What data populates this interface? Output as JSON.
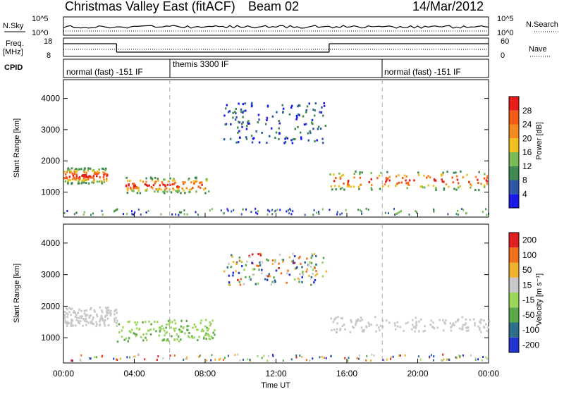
{
  "header": {
    "title": "Christmas Valley East (fitACF)",
    "beam": "Beam 02",
    "date": "14/Mar/2012"
  },
  "noise_panel": {
    "left_label": "N.Sky",
    "left_ticks": [
      "10^5",
      "10^0"
    ],
    "right_label": "N.Search",
    "right_ticks": [
      "10^5",
      "10^0"
    ]
  },
  "freq_panel": {
    "left_label_1": "Freq.",
    "left_label_2": "[MHz]",
    "left_ticks": [
      "18",
      "8"
    ],
    "right_label": "Nave",
    "right_ticks": [
      "60",
      "0"
    ]
  },
  "cpid": {
    "label": "CPID",
    "segments": [
      {
        "text": "normal (fast) -151 IF",
        "start_hour": 0,
        "end_hour": 6
      },
      {
        "text": "themis 3300 IF",
        "start_hour": 6,
        "end_hour": 18
      },
      {
        "text": "normal (fast) -151 IF",
        "start_hour": 18,
        "end_hour": 24
      }
    ]
  },
  "x_axis": {
    "label": "Time UT",
    "ticks": [
      "00:00",
      "04:00",
      "08:00",
      "12:00",
      "16:00",
      "20:00",
      "00:00"
    ]
  },
  "power_colorbar": {
    "label": "Power [dB]",
    "ticks": [
      "4",
      "8",
      "12",
      "16",
      "20",
      "24",
      "28"
    ],
    "colors": [
      "#1a1ae6",
      "#2f57a8",
      "#3f8a4f",
      "#79b956",
      "#f0c020",
      "#f38a20",
      "#f45a18",
      "#e81d18"
    ]
  },
  "velocity_colorbar": {
    "label": "Velocity [m s⁻¹]",
    "ticks": [
      "200",
      "100",
      "50",
      "15",
      "-15",
      "-50",
      "-100",
      "-200"
    ],
    "colors": [
      "#2233d0",
      "#2d6e8a",
      "#5aa84a",
      "#9ad65a",
      "#c8c8c8",
      "#f0b030",
      "#f07020",
      "#e02020"
    ]
  },
  "chart_data": [
    {
      "type": "heatmap",
      "name": "power",
      "ylabel": "Slant Range [km]",
      "xlabel": "",
      "ylim": [
        200,
        4600
      ],
      "xlim": [
        0,
        24
      ],
      "yticks": [
        1000,
        2000,
        3000,
        4000
      ],
      "features": [
        {
          "t0": 0.0,
          "t1": 2.5,
          "r0": 1300,
          "r1": 1800,
          "level": "high"
        },
        {
          "t0": 3.5,
          "t1": 8.2,
          "r0": 1000,
          "r1": 1500,
          "level": "high"
        },
        {
          "t0": 9.0,
          "t1": 14.8,
          "r0": 2600,
          "r1": 3900,
          "level": "low"
        },
        {
          "t0": 15.0,
          "t1": 24.0,
          "r0": 1100,
          "r1": 1700,
          "level": "high"
        }
      ]
    },
    {
      "type": "heatmap",
      "name": "velocity",
      "ylabel": "Slant Range [km]",
      "xlabel": "Time UT",
      "ylim": [
        200,
        4600
      ],
      "xlim": [
        0,
        24
      ],
      "yticks": [
        1000,
        2000,
        3000,
        4000
      ],
      "features": [
        {
          "t0": 0.0,
          "t1": 3.0,
          "r0": 1400,
          "r1": 2000,
          "level": "grey"
        },
        {
          "t0": 3.0,
          "t1": 8.5,
          "r0": 900,
          "r1": 1600,
          "level": "green"
        },
        {
          "t0": 9.0,
          "t1": 14.8,
          "r0": 2700,
          "r1": 3700,
          "level": "mixed"
        },
        {
          "t0": 15.0,
          "t1": 24.0,
          "r0": 1200,
          "r1": 1700,
          "level": "grey"
        }
      ]
    }
  ]
}
